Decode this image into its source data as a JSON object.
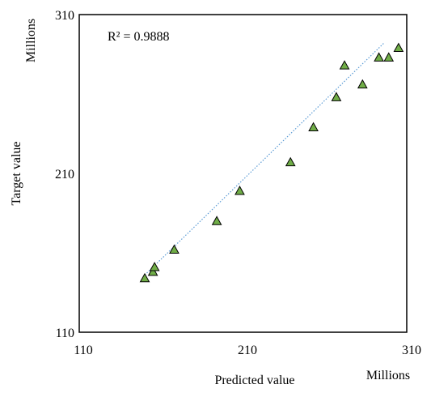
{
  "chart_data": {
    "type": "scatter",
    "title": "",
    "xlabel": "Predicted value",
    "ylabel": "Target value",
    "x_unit_label": "Millions",
    "y_unit_label": "Millions",
    "annotation": "R² = 0.9888",
    "xlim": [
      110,
      310
    ],
    "ylim": [
      110,
      310
    ],
    "xticks": [
      "110",
      "210",
      "310"
    ],
    "yticks": [
      "110",
      "210",
      "310"
    ],
    "grid": false,
    "legend": "none",
    "marker": "triangle",
    "marker_color": "#70ad47",
    "marker_edge_color": "#000000",
    "trendline": {
      "style": "dotted",
      "color": "#5b9bd5",
      "from": [
        150,
        146
      ],
      "to": [
        296,
        292
      ]
    },
    "points": [
      {
        "x": 150,
        "y": 144
      },
      {
        "x": 155,
        "y": 148
      },
      {
        "x": 156,
        "y": 151
      },
      {
        "x": 168,
        "y": 162
      },
      {
        "x": 194,
        "y": 180
      },
      {
        "x": 208,
        "y": 199
      },
      {
        "x": 239,
        "y": 217
      },
      {
        "x": 253,
        "y": 239
      },
      {
        "x": 267,
        "y": 258
      },
      {
        "x": 272,
        "y": 278
      },
      {
        "x": 283,
        "y": 266
      },
      {
        "x": 293,
        "y": 283
      },
      {
        "x": 299,
        "y": 283
      },
      {
        "x": 305,
        "y": 289
      }
    ]
  }
}
